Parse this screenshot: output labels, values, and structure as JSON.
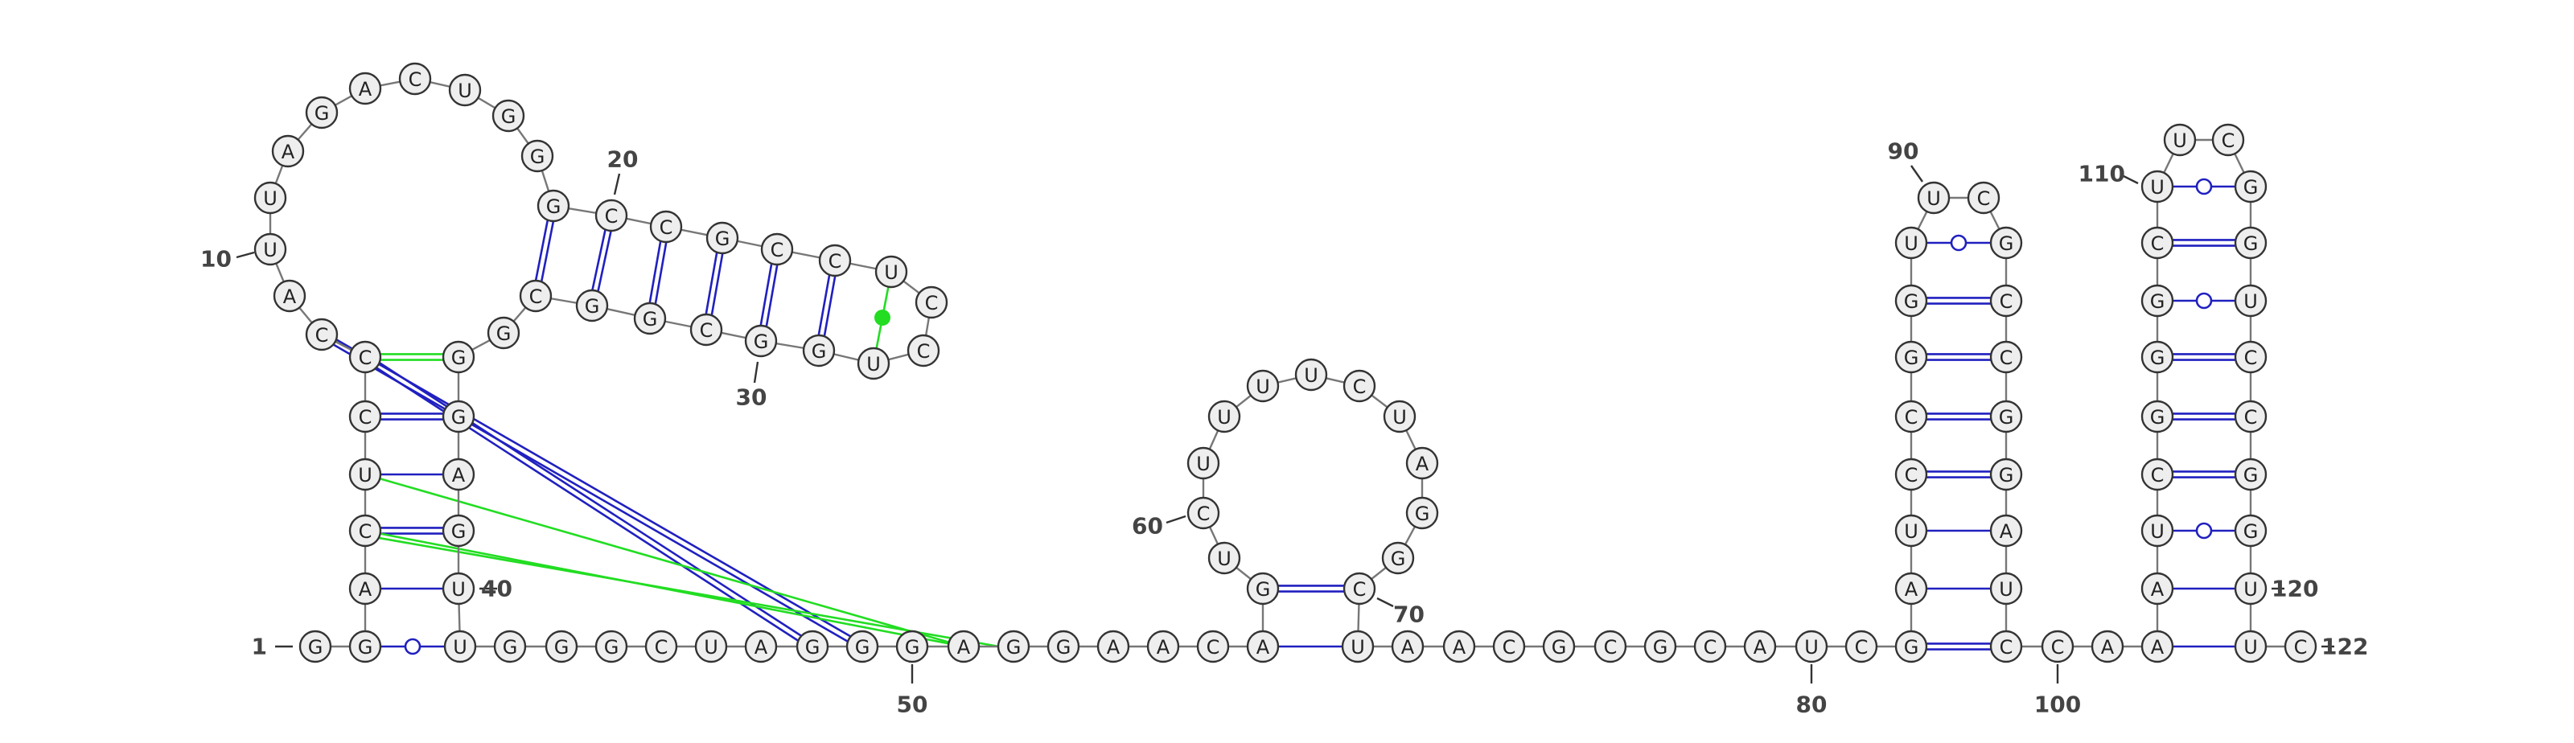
{
  "nucleotides": [
    "G",
    "G",
    "A",
    "C",
    "U",
    "C",
    "C",
    "C",
    "A",
    "U",
    "U",
    "A",
    "G",
    "A",
    "C",
    "U",
    "G",
    "G",
    "G",
    "C",
    "C",
    "G",
    "C",
    "C",
    "U",
    "C",
    "C",
    "U",
    "G",
    "G",
    "C",
    "G",
    "G",
    "C",
    "G",
    "G",
    "G",
    "A",
    "G",
    "U",
    "U",
    "G",
    "G",
    "G",
    "C",
    "U",
    "A",
    "G",
    "G",
    "G",
    "A",
    "G",
    "G",
    "A",
    "A",
    "C",
    "A",
    "G",
    "U",
    "C",
    "U",
    "U",
    "U",
    "U",
    "C",
    "U",
    "A",
    "G",
    "G",
    "C",
    "U",
    "A",
    "A",
    "C",
    "G",
    "C",
    "G",
    "C",
    "A",
    "U",
    "C",
    "G",
    "A",
    "U",
    "C",
    "C",
    "G",
    "G",
    "U",
    "U",
    "C",
    "G",
    "C",
    "C",
    "G",
    "G",
    "A",
    "U",
    "C",
    "C",
    "A",
    "A",
    "A",
    "U",
    "C",
    "G",
    "G",
    "G",
    "C",
    "U",
    "U",
    "C",
    "G",
    "G",
    "U",
    "C",
    "C",
    "G",
    "G",
    "U",
    "U",
    "C"
  ],
  "numbers": [
    1,
    10,
    20,
    30,
    40,
    50,
    60,
    70,
    80,
    90,
    100,
    110,
    120,
    122
  ]
}
